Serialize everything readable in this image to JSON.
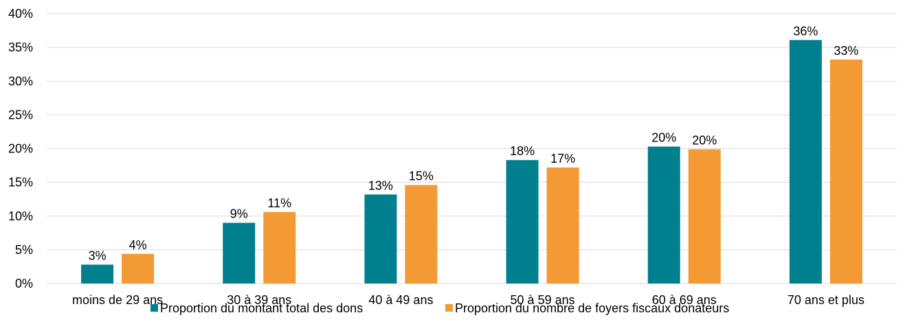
{
  "chart_data": {
    "type": "bar",
    "categories": [
      "moins de 29 ans",
      "30 à 39 ans",
      "40 à 49 ans",
      "50 à 59 ans",
      "60 à 69 ans",
      "70 ans et plus"
    ],
    "series": [
      {
        "name": "Proportion du montant total des dons",
        "color": "#00808f",
        "values": [
          2.8,
          9.0,
          13.2,
          18.3,
          20.3,
          36.1
        ],
        "labels": [
          "3%",
          "9%",
          "13%",
          "18%",
          "20%",
          "36%"
        ]
      },
      {
        "name": "Proportion du nombre de foyers fiscaux donateurs",
        "color": "#f39a34",
        "values": [
          4.4,
          10.6,
          14.6,
          17.2,
          19.9,
          33.2
        ],
        "labels": [
          "4%",
          "11%",
          "15%",
          "17%",
          "20%",
          "33%"
        ]
      }
    ],
    "ylim": [
      0,
      40
    ],
    "yticks": [
      "0%",
      "5%",
      "10%",
      "15%",
      "20%",
      "25%",
      "30%",
      "35%",
      "40%"
    ],
    "grid": true,
    "legend_position": "bottom"
  }
}
